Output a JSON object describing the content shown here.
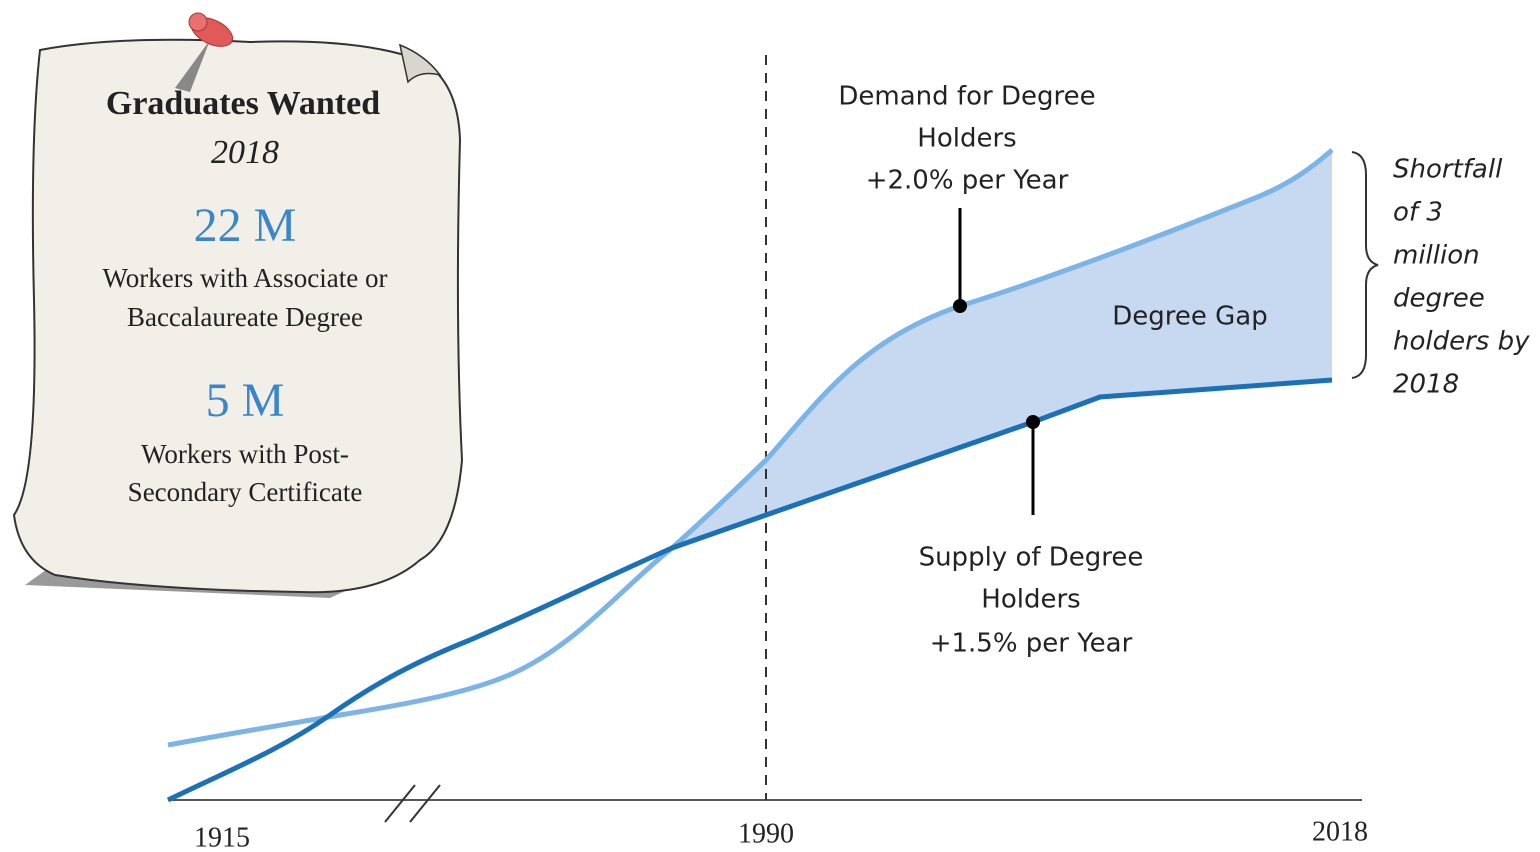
{
  "note": {
    "title": "Graduates Wanted",
    "year": "2018",
    "items": [
      {
        "value": "22 M",
        "lines": [
          "Workers with Associate or",
          "Baccalaureate Degree"
        ]
      },
      {
        "value": "5 M",
        "lines": [
          "Workers with Post-",
          "Secondary Certificate"
        ]
      }
    ]
  },
  "axis": {
    "labels": [
      "1915",
      "1990",
      "2018"
    ]
  },
  "annotations": {
    "demand": [
      "Demand for Degree",
      "Holders",
      "+2.0% per Year"
    ],
    "supply": [
      "Supply of Degree",
      "Holders",
      "+1.5% per Year"
    ],
    "gap": "Degree Gap",
    "shortfall": [
      "Shortfall",
      "of 3",
      "million",
      "degree",
      "holders by",
      "2018"
    ]
  }
}
